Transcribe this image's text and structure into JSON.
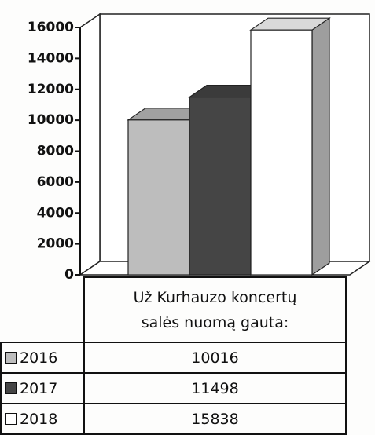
{
  "chart_data": {
    "type": "bar3d",
    "categories": [
      "Už Kurhauzo koncertų salės nuomą gauta:"
    ],
    "series": [
      {
        "name": "2016",
        "color": "#bdbdbd",
        "values": [
          10016
        ]
      },
      {
        "name": "2017",
        "color": "#454545",
        "values": [
          11498
        ]
      },
      {
        "name": "2018",
        "color": "#ffffff",
        "values": [
          15838
        ]
      }
    ],
    "ylim": [
      0,
      16000
    ],
    "yticks": [
      0,
      2000,
      4000,
      6000,
      8000,
      10000,
      12000,
      14000,
      16000
    ]
  }
}
